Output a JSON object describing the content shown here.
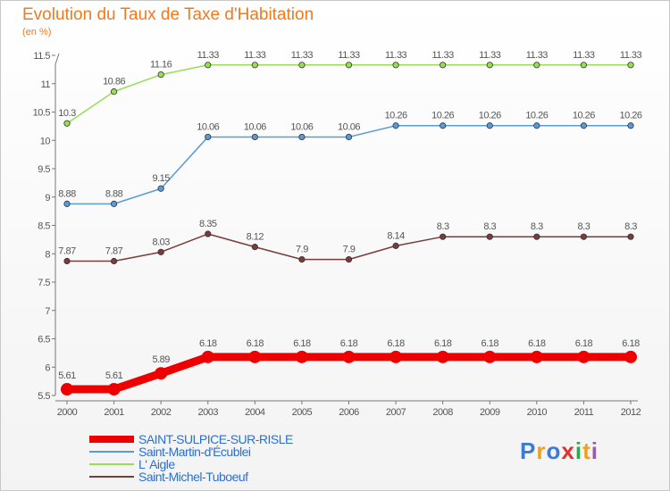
{
  "title": "Evolution du Taux de Taxe d'Habitation",
  "unit": "(en %)",
  "logo": "Proxiti",
  "chart_data": {
    "type": "line",
    "title": "Evolution du Taux de Taxe d'Habitation",
    "ylabel": "(en %)",
    "xlabel": "",
    "x": [
      "2000",
      "2001",
      "2002",
      "2003",
      "2004",
      "2005",
      "2006",
      "2007",
      "2008",
      "2009",
      "2010",
      "2011",
      "2012"
    ],
    "ylim": [
      5.5,
      11.5
    ],
    "yticks": [
      "5.5",
      "6",
      "6.5",
      "7",
      "7.5",
      "8",
      "8.5",
      "9",
      "9.5",
      "10",
      "10.5",
      "11",
      "11.5"
    ],
    "grid": false,
    "legend_position": "bottom",
    "series": [
      {
        "name": "SAINT-SULPICE-SUR-RISLE",
        "color": "#ee0000",
        "values": [
          5.61,
          5.61,
          5.89,
          6.18,
          6.18,
          6.18,
          6.18,
          6.18,
          6.18,
          6.18,
          6.18,
          6.18,
          6.18
        ],
        "labels": [
          "5.61",
          "5.61",
          "5.89",
          "6.18",
          "6.18",
          "6.18",
          "6.18",
          "6.18",
          "6.18",
          "6.18",
          "6.18",
          "6.18",
          "6.18"
        ]
      },
      {
        "name": "Saint-Martin-d'Écublei",
        "color": "#5b9bd5",
        "values": [
          8.88,
          8.88,
          9.15,
          10.06,
          10.06,
          10.06,
          10.06,
          10.26,
          10.26,
          10.26,
          10.26,
          10.26,
          10.26
        ],
        "labels": [
          "8.88",
          "8.88",
          "9.15",
          "10.06",
          "10.06",
          "10.06",
          "10.06",
          "10.26",
          "10.26",
          "10.26",
          "10.26",
          "10.26",
          "10.26"
        ]
      },
      {
        "name": "L' Aigle",
        "color": "#99dd55",
        "values": [
          10.3,
          10.86,
          11.16,
          11.33,
          11.33,
          11.33,
          11.33,
          11.33,
          11.33,
          11.33,
          11.33,
          11.33,
          11.33
        ],
        "labels": [
          "10.3",
          "10.86",
          "11.16",
          "11.33",
          "11.33",
          "11.33",
          "11.33",
          "11.33",
          "11.33",
          "11.33",
          "11.33",
          "11.33",
          "11.33"
        ]
      },
      {
        "name": "Saint-Michel-Tuboeuf",
        "color": "#7a3b3b",
        "values": [
          7.87,
          7.87,
          8.03,
          8.35,
          8.12,
          7.9,
          7.9,
          8.14,
          8.3,
          8.3,
          8.3,
          8.3,
          8.3
        ],
        "labels": [
          "7.87",
          "7.87",
          "8.03",
          "8.35",
          "8.12",
          "7.9",
          "7.9",
          "8.14",
          "8.3",
          "8.3",
          "8.3",
          "8.3",
          "8.3"
        ]
      }
    ]
  }
}
